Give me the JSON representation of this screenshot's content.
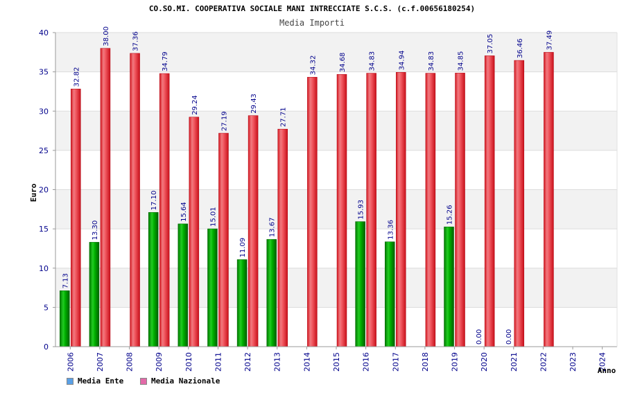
{
  "chart_data": {
    "type": "bar",
    "title": "CO.SO.MI. COOPERATIVA SOCIALE MANI INTRECCIATE S.C.S. (c.f.00656180254)",
    "subtitle": "Media Importi",
    "xlabel": "Anno",
    "ylabel": "Euro",
    "ylim": [
      0,
      40
    ],
    "yticks": [
      0,
      5,
      10,
      15,
      20,
      25,
      30,
      35,
      40
    ],
    "grid": true,
    "legend_position": "bottom-left",
    "categories": [
      "2006",
      "2007",
      "2008",
      "2009",
      "2010",
      "2011",
      "2012",
      "2013",
      "2014",
      "2015",
      "2016",
      "2017",
      "2018",
      "2019",
      "2020",
      "2021",
      "2022",
      "2023",
      "2024"
    ],
    "series": [
      {
        "name": "Media Ente",
        "color": "#00aa00",
        "legend_color": "#5aa0e6",
        "values": [
          7.13,
          13.3,
          null,
          17.1,
          15.64,
          15.01,
          11.09,
          13.67,
          null,
          null,
          15.93,
          13.36,
          null,
          15.26,
          0.0,
          0.0,
          null,
          null,
          null
        ],
        "labels": [
          "7.13",
          "13.30",
          null,
          "17.10",
          "15.64",
          "15.01",
          "11.09",
          "13.67",
          null,
          null,
          "15.93",
          "13.36",
          null,
          "15.26",
          "0.00",
          "0.00",
          null,
          null,
          null
        ]
      },
      {
        "name": "Media Nazionale",
        "color": "#e8303a",
        "legend_color": "#e26aa8",
        "values": [
          32.82,
          38.0,
          37.36,
          34.79,
          29.24,
          27.19,
          29.43,
          27.71,
          34.32,
          34.68,
          34.83,
          34.94,
          34.83,
          34.85,
          37.05,
          36.46,
          37.49,
          null,
          null
        ],
        "labels": [
          "32.82",
          "38.00",
          "37.36",
          "34.79",
          "29.24",
          "27.19",
          "29.43",
          "27.71",
          "34.32",
          "34.68",
          "34.83",
          "34.94",
          "34.83",
          "34.85",
          "37.05",
          "36.46",
          "37.49",
          null,
          null
        ]
      }
    ]
  }
}
